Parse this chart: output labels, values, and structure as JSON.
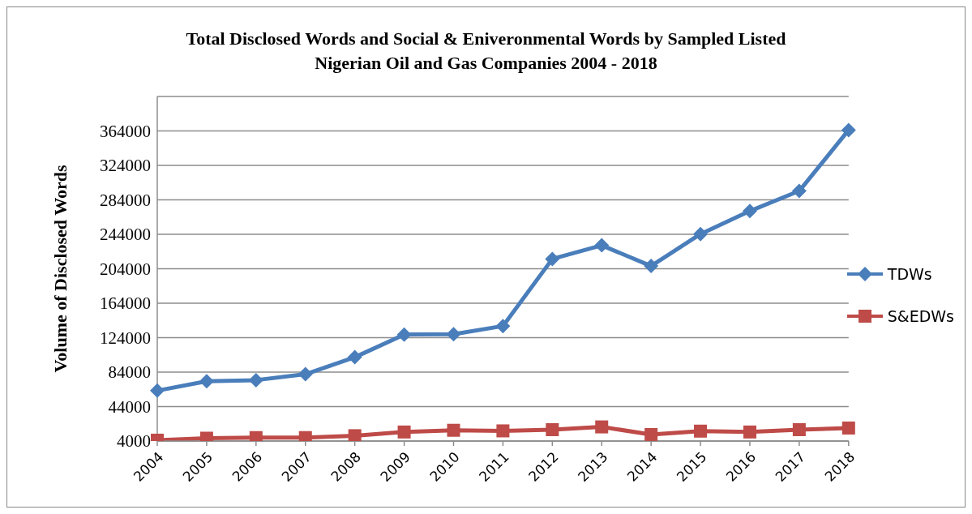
{
  "chart_data": {
    "type": "line",
    "title": "Total Disclosed Words and Social & Eniveronmental Words by Sampled Listed Nigerian Oil and Gas Companies 2004 - 2018",
    "ylabel": "Volume of Disclosed Words",
    "categories": [
      "2004",
      "2005",
      "2006",
      "2007",
      "2008",
      "2009",
      "2010",
      "2011",
      "2012",
      "2013",
      "2014",
      "2015",
      "2016",
      "2017",
      "2018"
    ],
    "series": [
      {
        "name": "TDWs",
        "color": "#4a7ebb",
        "marker": "diamond",
        "values": [
          62500,
          73400,
          74700,
          81600,
          101300,
          127600,
          128000,
          137500,
          215400,
          231200,
          207200,
          244300,
          271000,
          294300,
          365000
        ]
      },
      {
        "name": "S&EDWs",
        "color": "#be4b48",
        "marker": "square",
        "values": [
          5000,
          7300,
          8000,
          8000,
          10200,
          14500,
          16500,
          15800,
          17200,
          20400,
          11600,
          15500,
          14500,
          17200,
          19100
        ]
      }
    ],
    "ylim": [
      4000,
      404000
    ],
    "yticks": [
      4000,
      44000,
      84000,
      124000,
      164000,
      204000,
      244000,
      284000,
      324000,
      364000
    ],
    "grid": "y",
    "legend": "right"
  }
}
